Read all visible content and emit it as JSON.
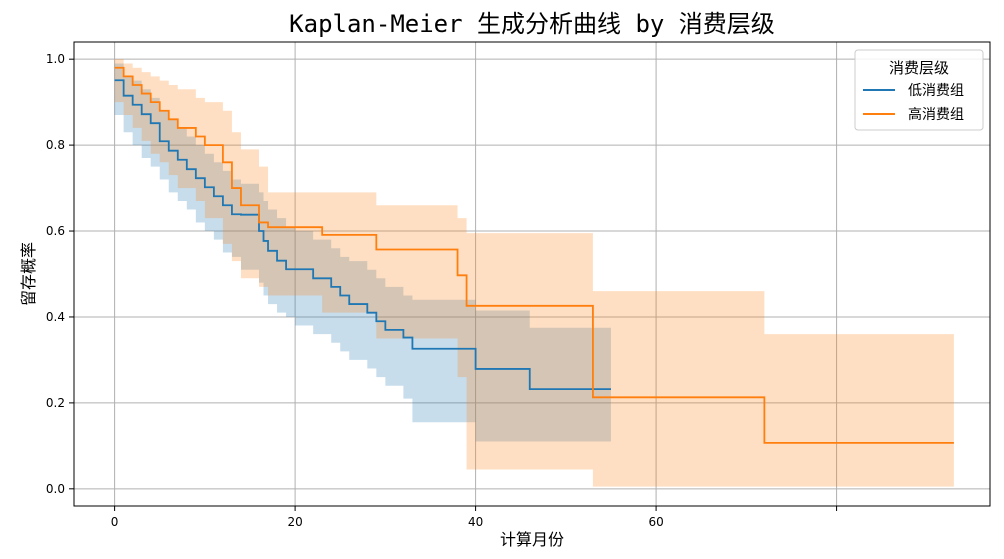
{
  "chart_data": {
    "type": "line",
    "title": "Kaplan-Meier 生成分析曲线 by 消费层级",
    "xlabel": "计算月份",
    "ylabel": "留存概率",
    "xlim": [
      -4.5,
      97
    ],
    "ylim": [
      -0.04,
      1.04
    ],
    "xticks": [
      "0",
      "20",
      "40",
      "60"
    ],
    "yticks": [
      "0.0",
      "0.2",
      "0.4",
      "0.6",
      "0.8",
      "1.0"
    ],
    "grid": true,
    "legend": {
      "title": "消费层级",
      "placement": "top-right"
    },
    "series": [
      {
        "name": "低消费组",
        "color": "#1f77b4",
        "ci_color": "#1f77b4",
        "x": [
          0,
          1,
          2,
          3,
          4,
          5,
          6,
          7,
          8,
          9,
          10,
          11,
          12,
          13,
          14,
          16,
          16.5,
          17,
          18,
          19,
          20,
          22,
          24,
          25,
          26,
          28,
          29,
          30,
          32,
          33,
          40,
          46,
          55
        ],
        "y": [
          0.951,
          0.915,
          0.894,
          0.872,
          0.851,
          0.809,
          0.787,
          0.766,
          0.744,
          0.723,
          0.702,
          0.681,
          0.66,
          0.639,
          0.638,
          0.6,
          0.577,
          0.554,
          0.531,
          0.511,
          0.511,
          0.49,
          0.47,
          0.45,
          0.43,
          0.41,
          0.39,
          0.37,
          0.352,
          0.326,
          0.279,
          0.232,
          0.232
        ],
        "lower": [
          0.89,
          0.87,
          0.83,
          0.8,
          0.77,
          0.75,
          0.72,
          0.69,
          0.67,
          0.65,
          0.62,
          0.6,
          0.58,
          0.55,
          0.54,
          0.51,
          0.48,
          0.45,
          0.43,
          0.41,
          0.4,
          0.38,
          0.36,
          0.34,
          0.32,
          0.3,
          0.28,
          0.26,
          0.24,
          0.21,
          0.155,
          0.11,
          0.11
        ],
        "upper": [
          0.99,
          0.96,
          0.95,
          0.93,
          0.91,
          0.88,
          0.86,
          0.84,
          0.82,
          0.8,
          0.78,
          0.76,
          0.74,
          0.72,
          0.71,
          0.69,
          0.67,
          0.65,
          0.63,
          0.61,
          0.6,
          0.58,
          0.56,
          0.54,
          0.53,
          0.51,
          0.49,
          0.47,
          0.45,
          0.44,
          0.415,
          0.375,
          0.375
        ]
      },
      {
        "name": "高消费组",
        "color": "#ff7f0e",
        "ci_color": "#ff7f0e",
        "x": [
          0,
          1,
          2,
          3,
          4,
          5,
          6,
          7,
          9,
          10,
          12,
          13,
          14,
          16,
          17,
          23,
          29,
          38,
          39,
          53,
          72,
          93
        ],
        "y": [
          0.98,
          0.96,
          0.94,
          0.92,
          0.9,
          0.88,
          0.86,
          0.84,
          0.82,
          0.8,
          0.76,
          0.7,
          0.66,
          0.62,
          0.609,
          0.591,
          0.557,
          0.497,
          0.426,
          0.213,
          0.107,
          0.107
        ],
        "lower": [
          0.93,
          0.9,
          0.87,
          0.84,
          0.81,
          0.78,
          0.76,
          0.73,
          0.7,
          0.67,
          0.63,
          0.57,
          0.53,
          0.49,
          0.47,
          0.45,
          0.41,
          0.35,
          0.26,
          0.045,
          0.005,
          0.005
        ],
        "upper": [
          1.0,
          0.99,
          0.98,
          0.97,
          0.96,
          0.95,
          0.94,
          0.93,
          0.91,
          0.9,
          0.88,
          0.83,
          0.79,
          0.75,
          0.69,
          0.69,
          0.66,
          0.63,
          0.595,
          0.46,
          0.36,
          0.36
        ]
      }
    ]
  }
}
